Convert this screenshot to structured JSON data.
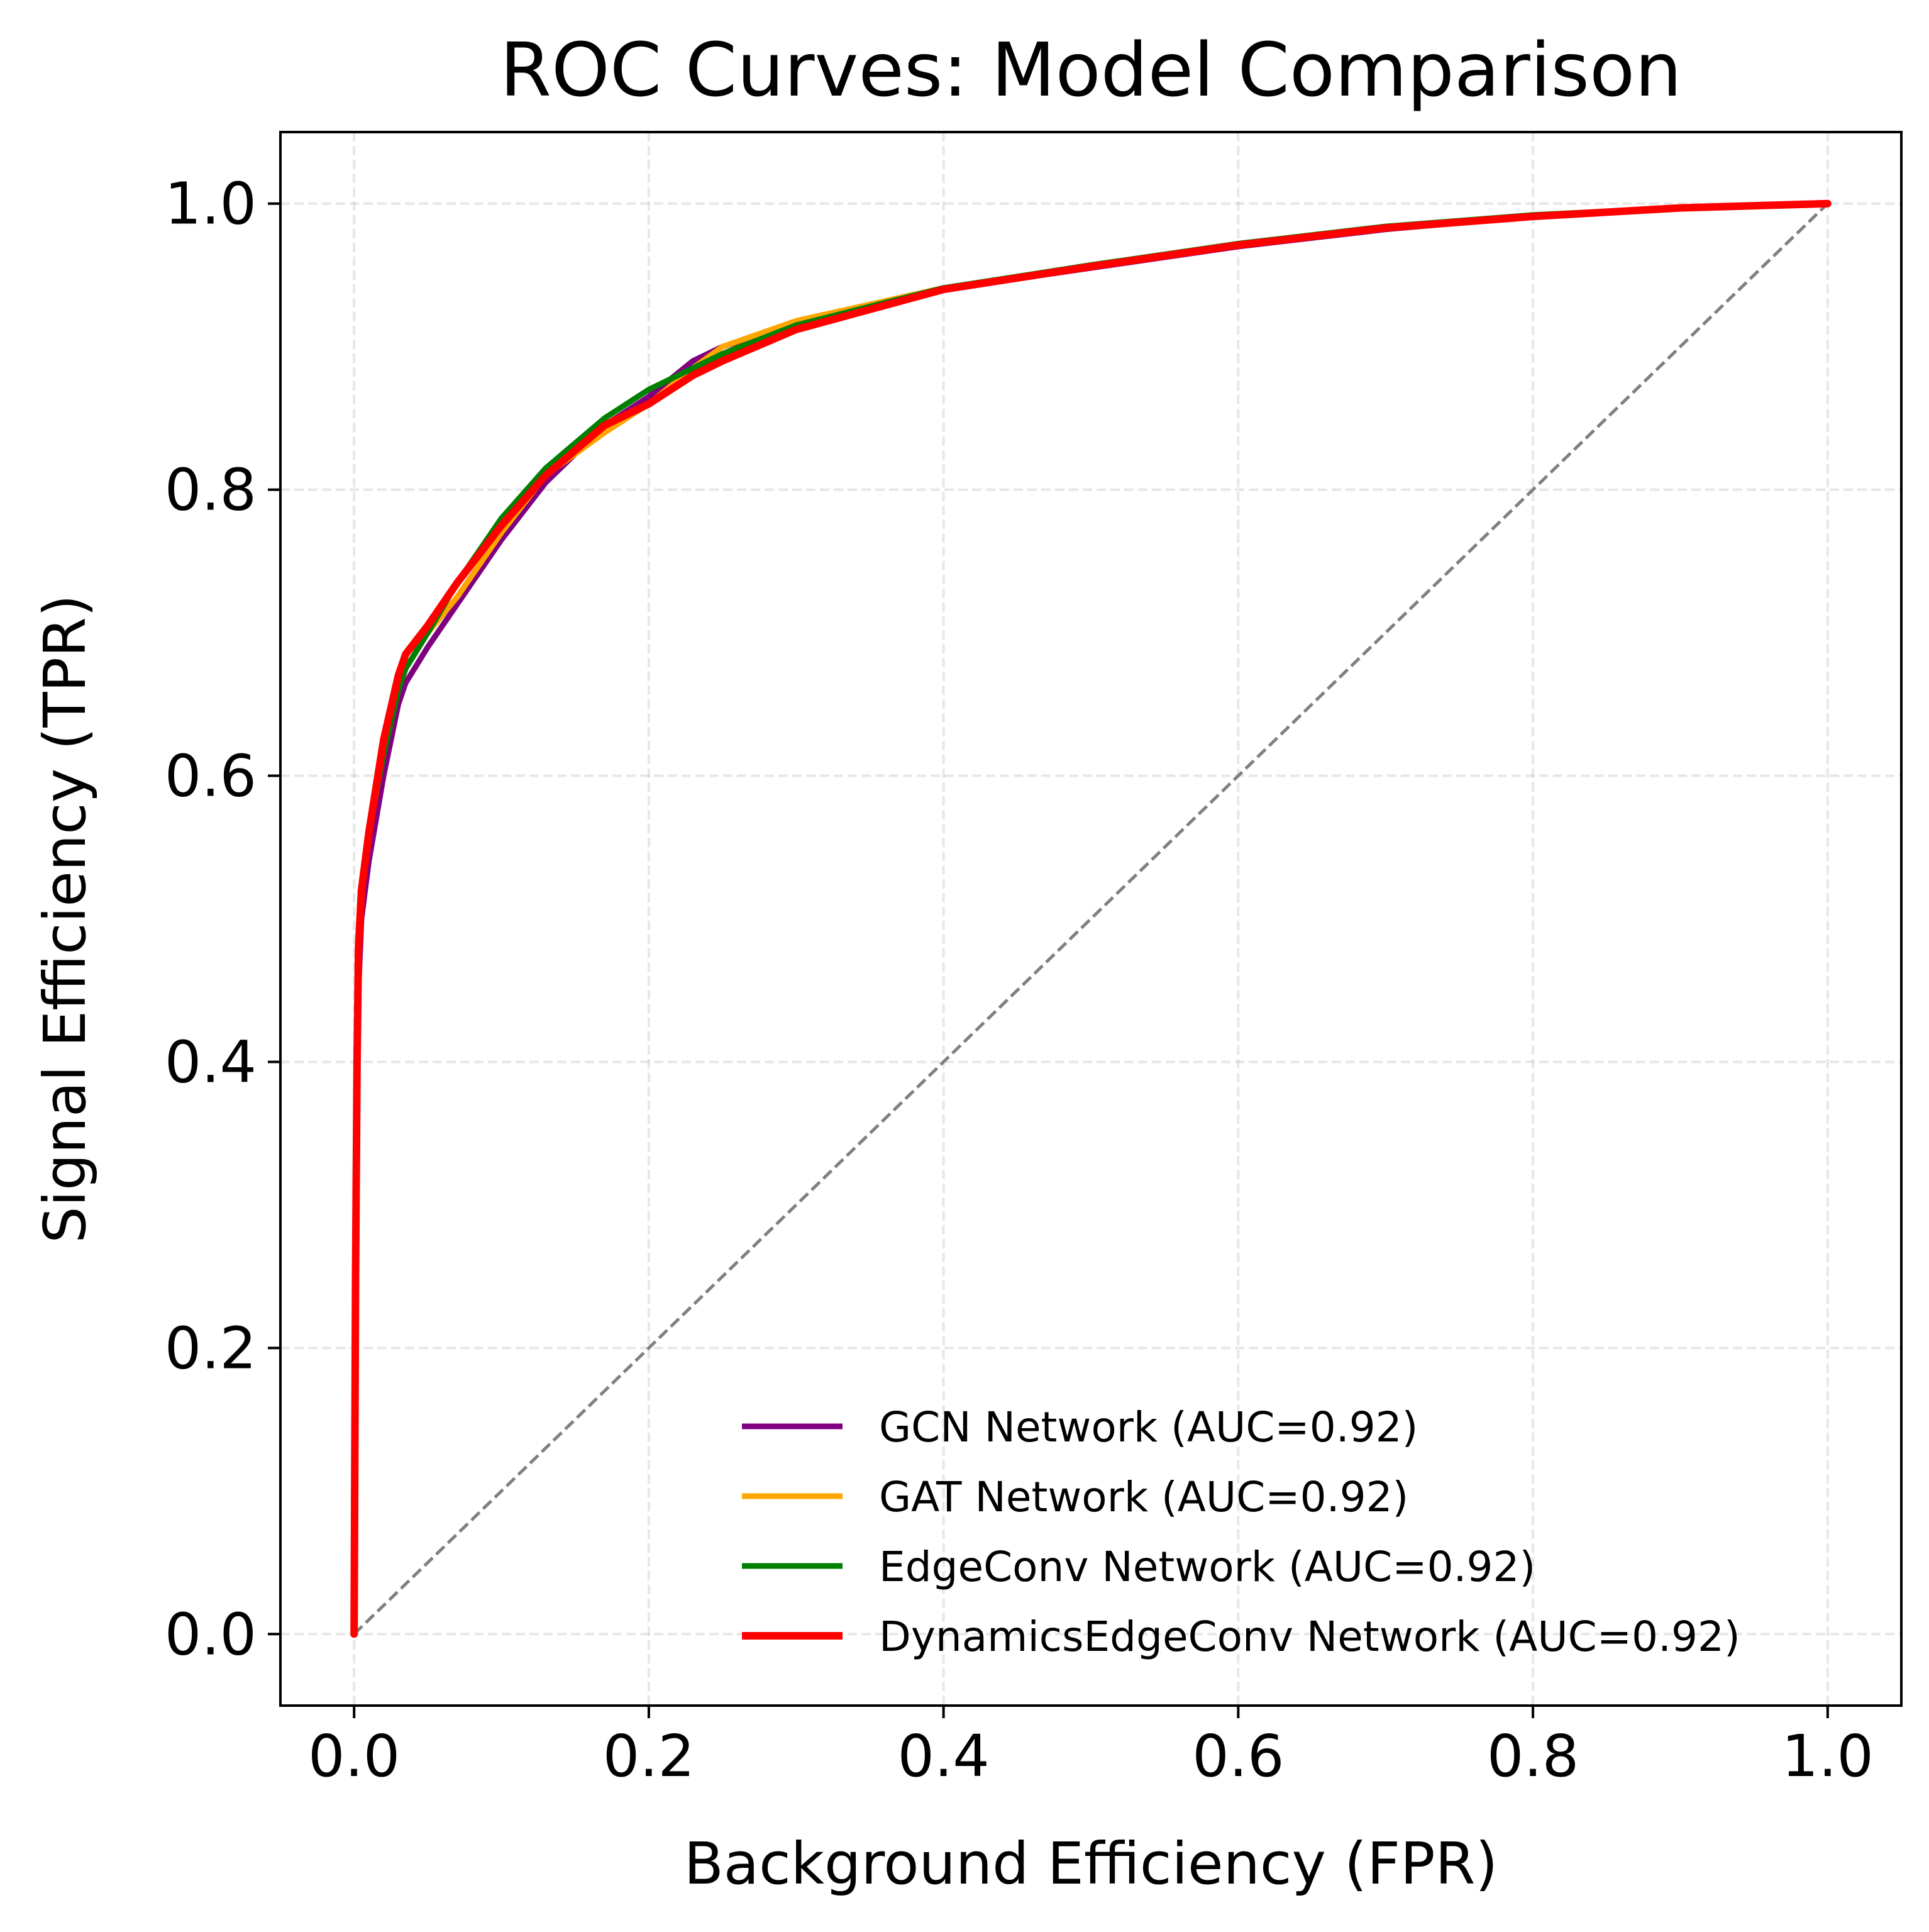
{
  "chart_data": {
    "type": "line",
    "title": "ROC Curves: Model Comparison",
    "xlabel": "Background Efficiency (FPR)",
    "ylabel": "Signal Efficiency (TPR)",
    "xlim": [
      -0.05,
      1.05
    ],
    "ylim": [
      -0.05,
      1.05
    ],
    "xticks": [
      0.0,
      0.2,
      0.4,
      0.6,
      0.8,
      1.0
    ],
    "yticks": [
      0.0,
      0.2,
      0.4,
      0.6,
      0.8,
      1.0
    ],
    "xtick_labels": [
      "0.0",
      "0.2",
      "0.4",
      "0.6",
      "0.8",
      "1.0"
    ],
    "ytick_labels": [
      "0.0",
      "0.2",
      "0.4",
      "0.6",
      "0.8",
      "1.0"
    ],
    "grid": true,
    "legend_position": "lower-right",
    "diagonal": {
      "x": [
        0,
        1
      ],
      "y": [
        0,
        1
      ],
      "color": "#808080",
      "style": "dashed"
    },
    "series": [
      {
        "name": "GCN Network (AUC=0.92)",
        "color": "#800080",
        "x": [
          0,
          0.001,
          0.002,
          0.003,
          0.005,
          0.01,
          0.02,
          0.03,
          0.035,
          0.05,
          0.07,
          0.1,
          0.13,
          0.17,
          0.2,
          0.23,
          0.25,
          0.3,
          0.4,
          0.5,
          0.6,
          0.7,
          0.8,
          0.9,
          1.0
        ],
        "y": [
          0,
          0.2,
          0.35,
          0.45,
          0.5,
          0.54,
          0.6,
          0.65,
          0.665,
          0.69,
          0.72,
          0.765,
          0.805,
          0.845,
          0.865,
          0.89,
          0.9,
          0.915,
          0.94,
          0.955,
          0.97,
          0.982,
          0.991,
          0.997,
          1.0
        ]
      },
      {
        "name": "GAT Network (AUC=0.92)",
        "color": "#FFA500",
        "x": [
          0,
          0.001,
          0.002,
          0.003,
          0.005,
          0.01,
          0.02,
          0.03,
          0.035,
          0.05,
          0.07,
          0.1,
          0.13,
          0.17,
          0.2,
          0.23,
          0.25,
          0.3,
          0.4,
          0.5,
          0.6,
          0.7,
          0.8,
          0.9,
          1.0
        ],
        "y": [
          0,
          0.25,
          0.4,
          0.48,
          0.52,
          0.56,
          0.615,
          0.66,
          0.675,
          0.7,
          0.725,
          0.77,
          0.81,
          0.84,
          0.86,
          0.885,
          0.9,
          0.918,
          0.941,
          0.956,
          0.971,
          0.983,
          0.992,
          0.997,
          1.0
        ]
      },
      {
        "name": "EdgeConv Network (AUC=0.92)",
        "color": "#008000",
        "x": [
          0,
          0.001,
          0.002,
          0.003,
          0.005,
          0.01,
          0.02,
          0.03,
          0.035,
          0.05,
          0.07,
          0.1,
          0.13,
          0.17,
          0.2,
          0.23,
          0.25,
          0.3,
          0.4,
          0.5,
          0.6,
          0.7,
          0.8,
          0.9,
          1.0
        ],
        "y": [
          0,
          0.25,
          0.4,
          0.48,
          0.52,
          0.56,
          0.615,
          0.66,
          0.675,
          0.7,
          0.735,
          0.78,
          0.815,
          0.85,
          0.87,
          0.885,
          0.895,
          0.915,
          0.941,
          0.957,
          0.972,
          0.984,
          0.992,
          0.997,
          1.0
        ]
      },
      {
        "name": "DynamicsEdgeConv Network (AUC=0.92)",
        "color": "#FF0000",
        "x": [
          0,
          0.001,
          0.002,
          0.003,
          0.005,
          0.01,
          0.02,
          0.03,
          0.035,
          0.05,
          0.07,
          0.1,
          0.13,
          0.17,
          0.2,
          0.23,
          0.25,
          0.3,
          0.4,
          0.5,
          0.6,
          0.7,
          0.8,
          0.9,
          1.0
        ],
        "y": [
          0,
          0.25,
          0.4,
          0.48,
          0.52,
          0.56,
          0.625,
          0.67,
          0.685,
          0.705,
          0.735,
          0.775,
          0.81,
          0.845,
          0.86,
          0.88,
          0.89,
          0.912,
          0.94,
          0.956,
          0.971,
          0.983,
          0.991,
          0.997,
          1.0
        ]
      }
    ]
  }
}
